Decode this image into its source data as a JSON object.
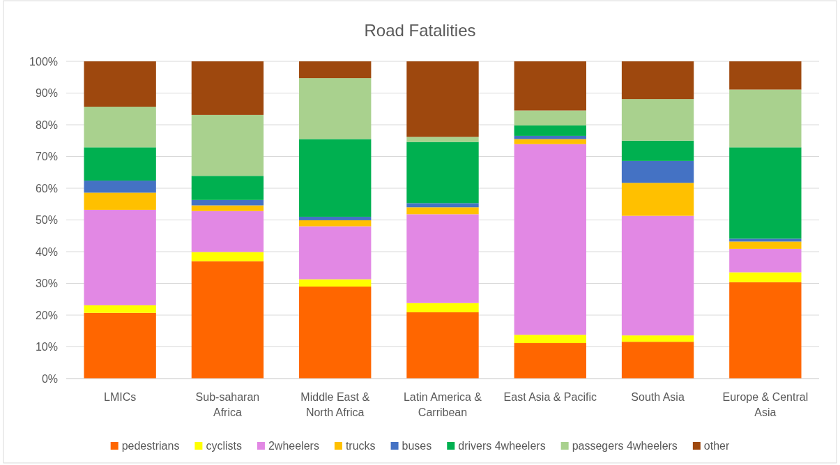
{
  "chart_data": {
    "type": "bar",
    "title": "Road Fatalities",
    "stacked": true,
    "grid": "y",
    "legend": "bottom",
    "categories": [
      "LMICs",
      "Sub-saharan Africa",
      "Middle East & North Africa",
      "Latin America & Carribean",
      "East Asia & Pacific",
      "South Asia",
      "Europe & Central Asia"
    ],
    "ylim": [
      0,
      100
    ],
    "yticks": [
      {
        "value": 0,
        "label": "0%"
      },
      {
        "value": 10,
        "label": "10%"
      },
      {
        "value": 20,
        "label": "20%"
      },
      {
        "value": 30,
        "label": "30%"
      },
      {
        "value": 40,
        "label": "40%"
      },
      {
        "value": 50,
        "label": "50%"
      },
      {
        "value": 60,
        "label": "60%"
      },
      {
        "value": 70,
        "label": "70%"
      },
      {
        "value": 80,
        "label": "80%"
      },
      {
        "value": 90,
        "label": "90%"
      },
      {
        "value": 100,
        "label": "100%"
      }
    ],
    "series": [
      {
        "name": "pedestrians",
        "color": "#ff6600",
        "values": [
          20.7,
          37.0,
          29.0,
          20.9,
          11.2,
          11.6,
          30.4
        ]
      },
      {
        "name": "cyclists",
        "color": "#ffff00",
        "values": [
          2.4,
          2.9,
          2.3,
          2.9,
          2.6,
          2.0,
          3.1
        ]
      },
      {
        "name": "2wheelers",
        "color": "#e288e4",
        "values": [
          30.1,
          12.9,
          16.7,
          28.0,
          60.1,
          37.7,
          7.4
        ]
      },
      {
        "name": "trucks",
        "color": "#ffc000",
        "values": [
          5.4,
          1.8,
          1.9,
          2.2,
          1.6,
          10.4,
          2.3
        ]
      },
      {
        "name": "buses",
        "color": "#4472c4",
        "values": [
          3.8,
          1.7,
          1.1,
          1.3,
          1.0,
          6.9,
          0.9
        ]
      },
      {
        "name": "drivers 4wheelers",
        "color": "#00b050",
        "values": [
          10.5,
          7.6,
          24.5,
          19.3,
          3.3,
          6.4,
          28.8
        ]
      },
      {
        "name": "passegers 4wheelers",
        "color": "#a9d18e",
        "values": [
          12.8,
          19.2,
          19.2,
          1.6,
          4.7,
          13.1,
          18.2
        ]
      },
      {
        "name": "other",
        "color": "#9e480e",
        "values": [
          14.3,
          16.9,
          5.3,
          23.8,
          15.5,
          11.9,
          8.9
        ]
      }
    ]
  }
}
